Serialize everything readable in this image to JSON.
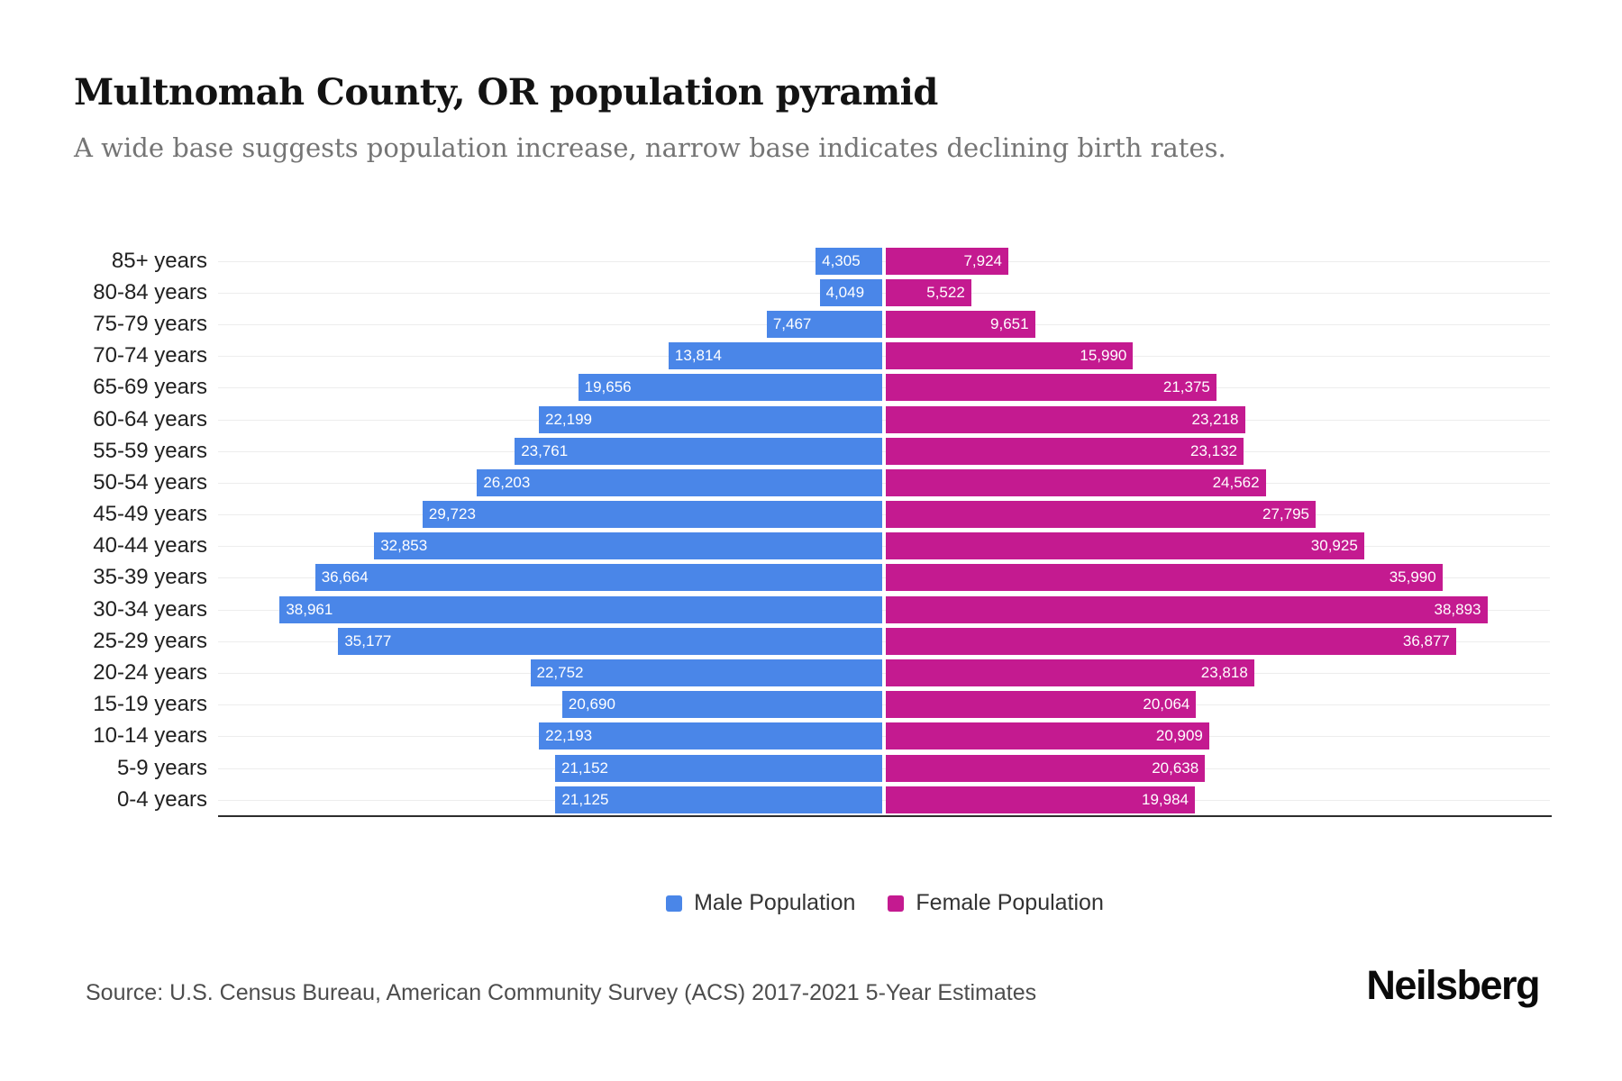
{
  "header": {
    "title": "Multnomah County, OR population pyramid",
    "subtitle": "A wide base suggests population increase, narrow base indicates declining birth rates."
  },
  "chart_data": {
    "type": "bar",
    "variant": "population-pyramid",
    "orientation": "horizontal",
    "grid": true,
    "legend_position": "bottom",
    "axis_max_per_side": 43000,
    "categories": [
      "85+ years",
      "80-84 years",
      "75-79 years",
      "70-74 years",
      "65-69 years",
      "60-64 years",
      "55-59 years",
      "50-54 years",
      "45-49 years",
      "40-44 years",
      "35-39 years",
      "30-34 years",
      "25-29 years",
      "20-24 years",
      "15-19 years",
      "10-14 years",
      "5-9 years",
      "0-4 years"
    ],
    "series": [
      {
        "name": "Male Population",
        "color": "#4A86E8",
        "values": [
          4305,
          4049,
          7467,
          13814,
          19656,
          22199,
          23761,
          26203,
          29723,
          32853,
          36664,
          38961,
          35177,
          22752,
          20690,
          22193,
          21152,
          21125
        ]
      },
      {
        "name": "Female Population",
        "color": "#C41A90",
        "values": [
          7924,
          5522,
          9651,
          15990,
          21375,
          23218,
          23132,
          24562,
          27795,
          30925,
          35990,
          38893,
          36877,
          23818,
          20064,
          20909,
          20638,
          19984
        ]
      }
    ]
  },
  "footer": {
    "source": "Source: U.S. Census Bureau, American Community Survey (ACS) 2017-2021 5-Year Estimates",
    "brand": "Neilsberg"
  }
}
